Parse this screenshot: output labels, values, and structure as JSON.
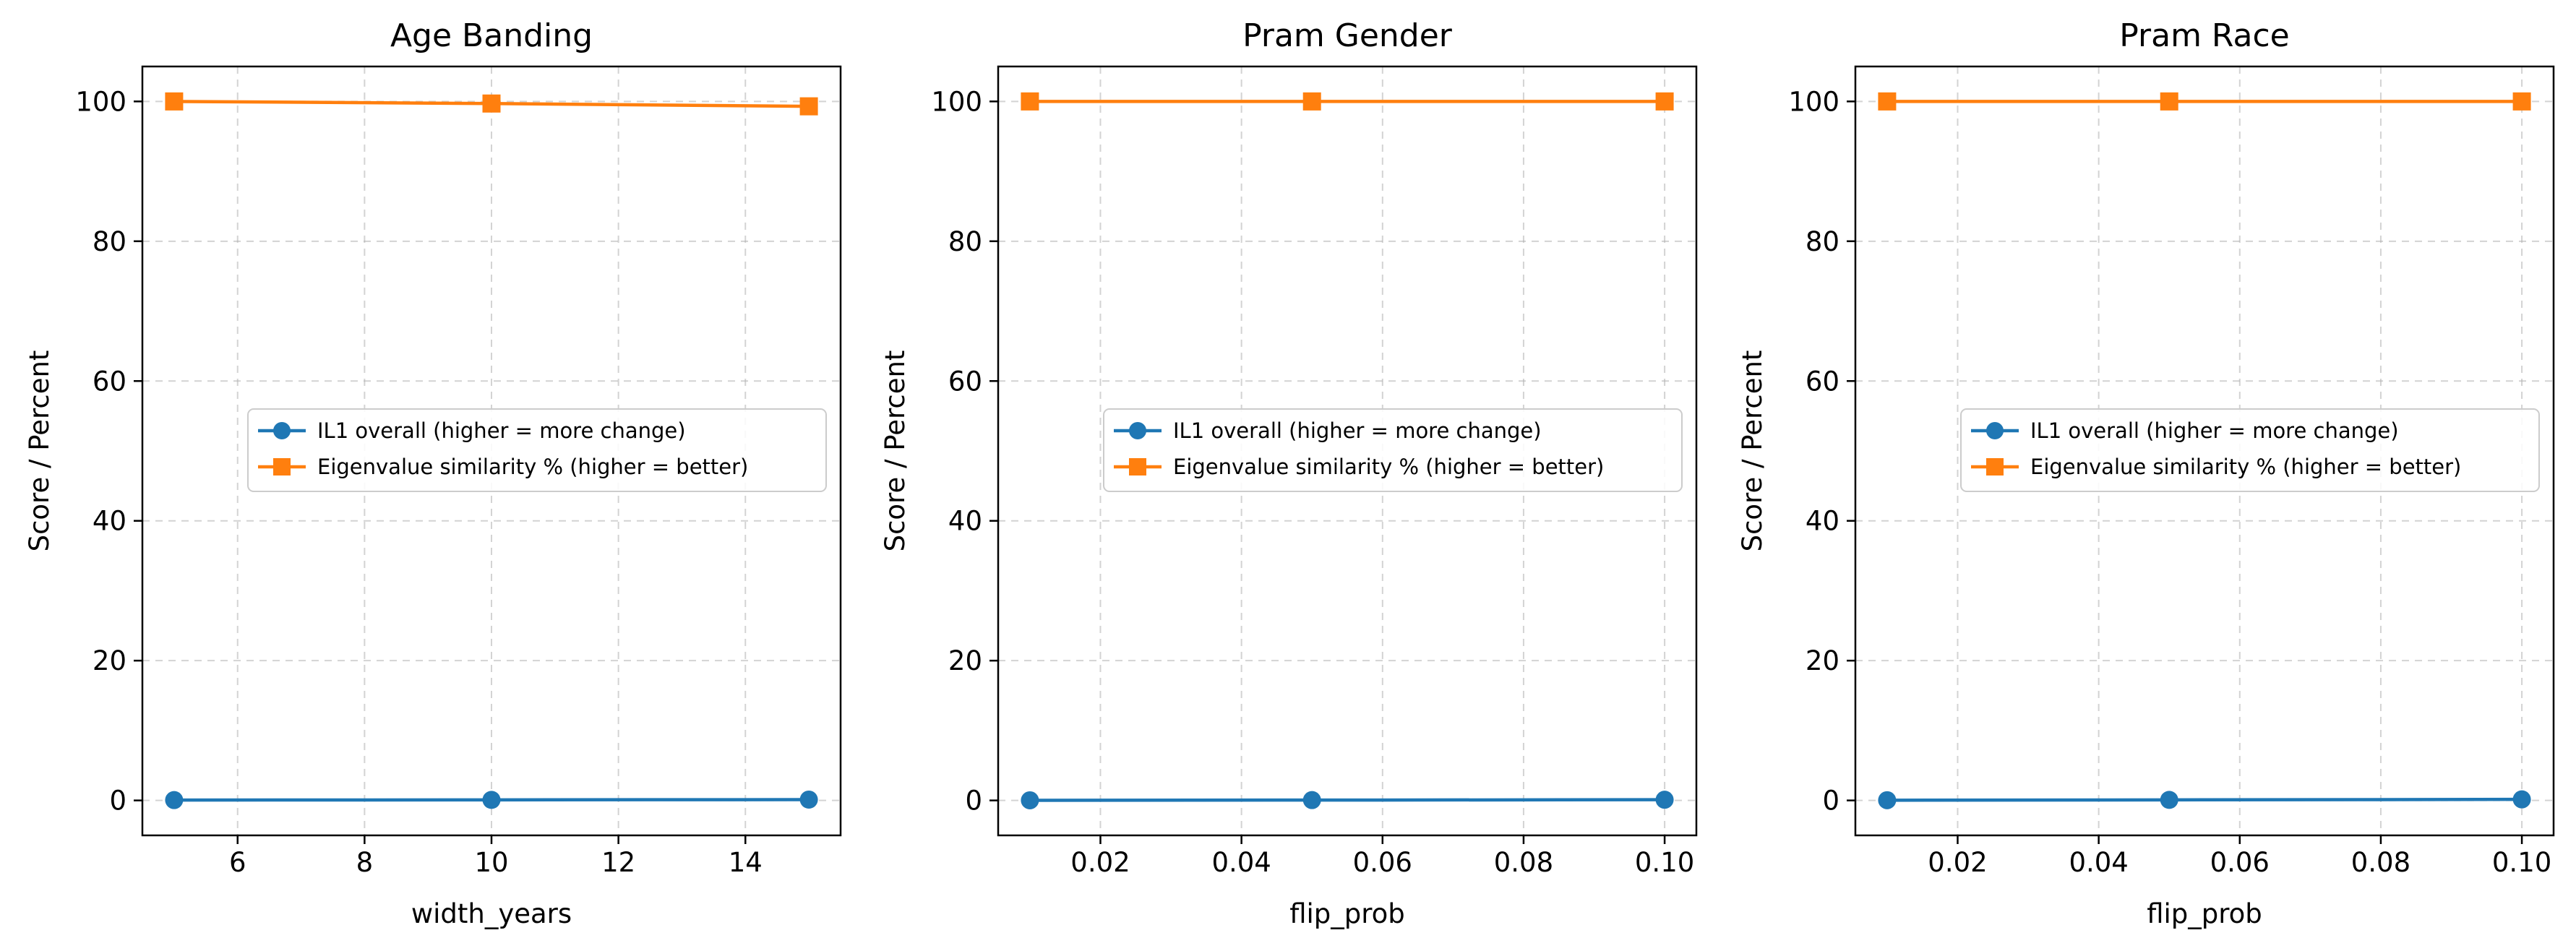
{
  "chart_data": [
    {
      "type": "line",
      "title": "Age Banding",
      "xlabel": "width_years",
      "ylabel": "Score / Percent",
      "xlim": [
        4.5,
        15.5
      ],
      "ylim": [
        -5,
        105
      ],
      "xticks": [
        6,
        8,
        10,
        12,
        14
      ],
      "xtick_labels": [
        "6",
        "8",
        "10",
        "12",
        "14"
      ],
      "yticks": [
        0,
        20,
        40,
        60,
        80,
        100
      ],
      "ytick_labels": [
        "0",
        "20",
        "40",
        "60",
        "80",
        "100"
      ],
      "grid": true,
      "legend_position": "center-right",
      "x": [
        5,
        10,
        15
      ],
      "series": [
        {
          "name": "IL1 overall (higher = more change)",
          "marker": "circle",
          "color": "#1f77b4",
          "values": [
            0.05,
            0.08,
            0.12
          ]
        },
        {
          "name": "Eigenvalue similarity % (higher = better)",
          "marker": "square",
          "color": "#ff7f0e",
          "values": [
            100,
            99.7,
            99.3
          ]
        }
      ]
    },
    {
      "type": "line",
      "title": "Pram Gender",
      "xlabel": "flip_prob",
      "ylabel": "Score / Percent",
      "xlim": [
        0.0055,
        0.1045
      ],
      "ylim": [
        -5,
        105
      ],
      "xticks": [
        0.02,
        0.04,
        0.06,
        0.08,
        0.1
      ],
      "xtick_labels": [
        "0.02",
        "0.04",
        "0.06",
        "0.08",
        "0.10"
      ],
      "yticks": [
        0,
        20,
        40,
        60,
        80,
        100
      ],
      "ytick_labels": [
        "0",
        "20",
        "40",
        "60",
        "80",
        "100"
      ],
      "grid": true,
      "legend_position": "center-right",
      "x": [
        0.01,
        0.05,
        0.1
      ],
      "series": [
        {
          "name": "IL1 overall (higher = more change)",
          "marker": "circle",
          "color": "#1f77b4",
          "values": [
            0.02,
            0.05,
            0.1
          ]
        },
        {
          "name": "Eigenvalue similarity % (higher = better)",
          "marker": "square",
          "color": "#ff7f0e",
          "values": [
            100,
            100,
            100
          ]
        }
      ]
    },
    {
      "type": "line",
      "title": "Pram Race",
      "xlabel": "flip_prob",
      "ylabel": "Score / Percent",
      "xlim": [
        0.0055,
        0.1045
      ],
      "ylim": [
        -5,
        105
      ],
      "xticks": [
        0.02,
        0.04,
        0.06,
        0.08,
        0.1
      ],
      "xtick_labels": [
        "0.02",
        "0.04",
        "0.06",
        "0.08",
        "0.10"
      ],
      "yticks": [
        0,
        20,
        40,
        60,
        80,
        100
      ],
      "ytick_labels": [
        "0",
        "20",
        "40",
        "60",
        "80",
        "100"
      ],
      "grid": true,
      "legend_position": "center-right",
      "x": [
        0.01,
        0.05,
        0.1
      ],
      "series": [
        {
          "name": "IL1 overall (higher = more change)",
          "marker": "circle",
          "color": "#1f77b4",
          "values": [
            0.03,
            0.08,
            0.15
          ]
        },
        {
          "name": "Eigenvalue similarity % (higher = better)",
          "marker": "square",
          "color": "#ff7f0e",
          "values": [
            100,
            100,
            100
          ]
        }
      ]
    }
  ]
}
